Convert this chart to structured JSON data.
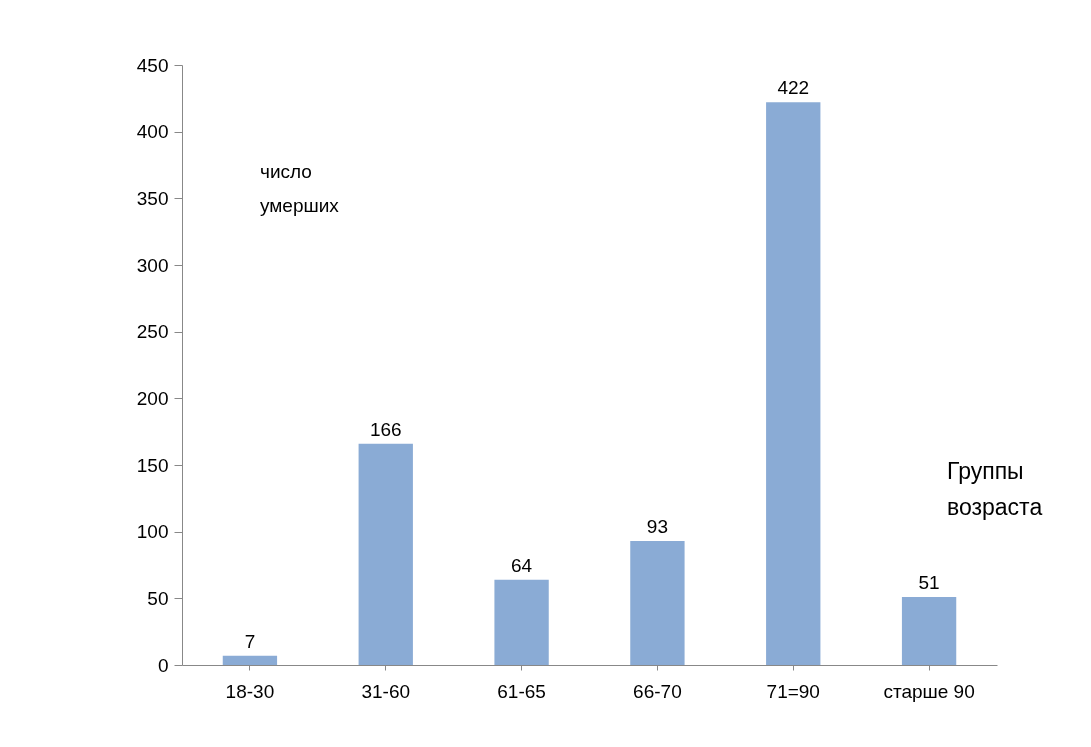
{
  "chart_data": {
    "type": "bar",
    "categories": [
      "18-30",
      "31-60",
      "61-65",
      "66-70",
      "71=90",
      "старше 90"
    ],
    "values": [
      7,
      166,
      64,
      93,
      422,
      51
    ],
    "color": "#8aabd5",
    "ylabel": "число умерших",
    "xlabel": "Группы возраста",
    "ylim": [
      0,
      450
    ],
    "yticks": [
      0,
      50,
      100,
      150,
      200,
      250,
      300,
      350,
      400,
      450
    ],
    "data_labels": true
  }
}
